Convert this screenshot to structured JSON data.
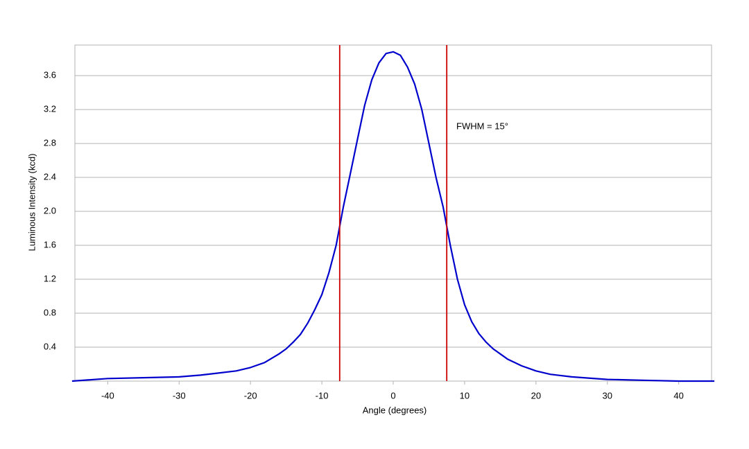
{
  "chart_data": {
    "type": "line",
    "xlabel": "Angle (degrees)",
    "ylabel": "Luminous Intensity (kcd)",
    "annotation": "FWHM = 15°",
    "x": [
      -45,
      -40,
      -35,
      -30,
      -27,
      -25,
      -22,
      -20,
      -18,
      -16,
      -15,
      -14,
      -13,
      -12,
      -11,
      -10,
      -9,
      -8,
      -7,
      -6,
      -5,
      -4,
      -3,
      -2,
      -1,
      0,
      1,
      2,
      3,
      4,
      5,
      6,
      7,
      8,
      9,
      10,
      11,
      12,
      13,
      14,
      15,
      16,
      17,
      18,
      20,
      22,
      25,
      30,
      35,
      40,
      45
    ],
    "series": [
      {
        "color": "#0000cc",
        "values": [
          0.0,
          0.03,
          0.04,
          0.05,
          0.07,
          0.09,
          0.12,
          0.16,
          0.22,
          0.32,
          0.38,
          0.46,
          0.55,
          0.68,
          0.84,
          1.02,
          1.28,
          1.6,
          2.05,
          2.45,
          2.85,
          3.25,
          3.55,
          3.75,
          3.86,
          3.88,
          3.84,
          3.7,
          3.5,
          3.2,
          2.8,
          2.4,
          2.05,
          1.6,
          1.2,
          0.9,
          0.7,
          0.56,
          0.46,
          0.38,
          0.32,
          0.26,
          0.22,
          0.18,
          0.12,
          0.08,
          0.05,
          0.02,
          0.01,
          0.0,
          0.0
        ]
      }
    ],
    "vlines": [
      -7.5,
      7.5
    ],
    "vline_color": "#cc0000",
    "xlim": [
      -44.6,
      44.6
    ],
    "xticks": [
      -40,
      -30,
      -20,
      -10,
      0,
      10,
      20,
      30,
      40
    ],
    "ylim": [
      0,
      3.96
    ],
    "yticks": [
      0.4,
      0.8,
      1.2,
      1.6,
      {
        "value": 2,
        "label": "2.0"
      },
      2.4,
      2.8,
      3.2,
      3.6
    ],
    "grid": true
  }
}
